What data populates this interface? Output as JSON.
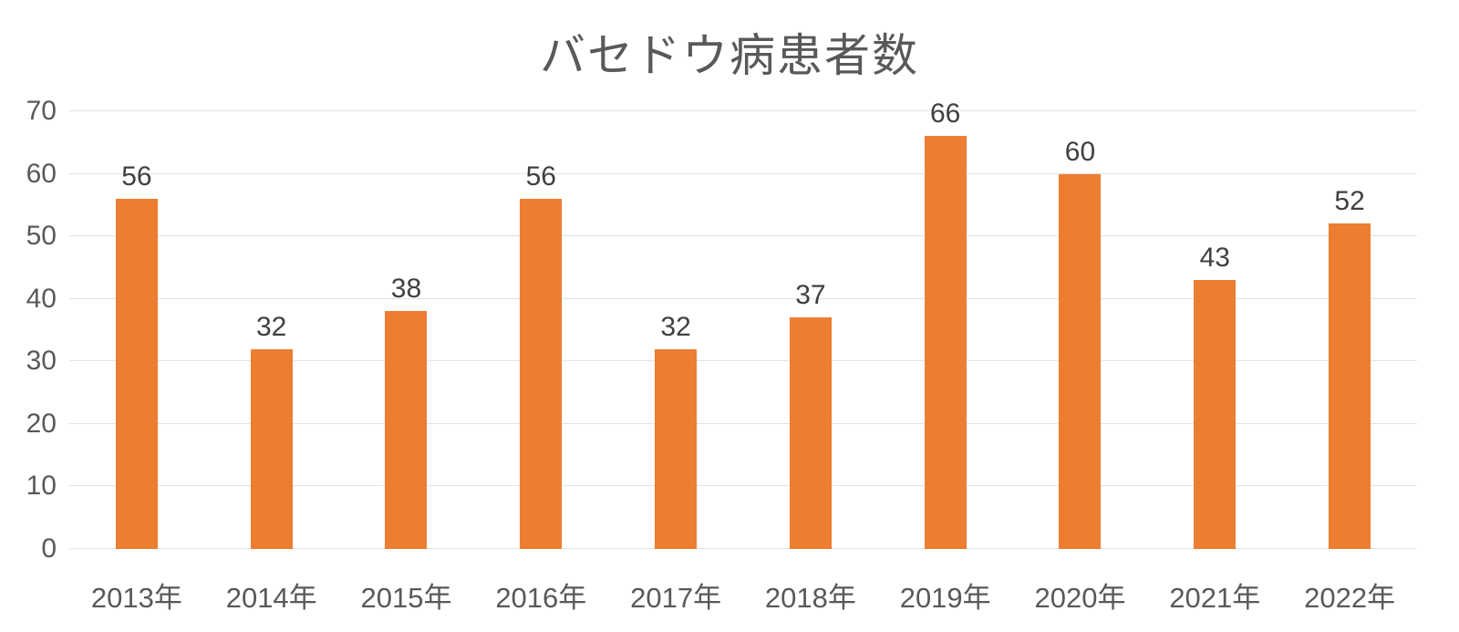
{
  "title": "バセドウ病患者数",
  "chart_data": {
    "type": "bar",
    "title": "バセドウ病患者数",
    "categories": [
      "2013年",
      "2014年",
      "2015年",
      "2016年",
      "2017年",
      "2018年",
      "2019年",
      "2020年",
      "2021年",
      "2022年"
    ],
    "values": [
      56,
      32,
      38,
      56,
      32,
      37,
      66,
      60,
      43,
      52
    ],
    "xlabel": "",
    "ylabel": "",
    "ylim": [
      0,
      70
    ],
    "ytick_step": 10,
    "yticks": [
      0,
      10,
      20,
      30,
      40,
      50,
      60,
      70
    ],
    "grid": true,
    "legend": "none",
    "data_labels": true,
    "colors": {
      "bar": "#ED7D31",
      "title_text": "#595959",
      "axis_text": "#595959",
      "data_label_text": "#404040",
      "gridline": "#E2E2E2",
      "background": "#FFFFFF"
    }
  }
}
